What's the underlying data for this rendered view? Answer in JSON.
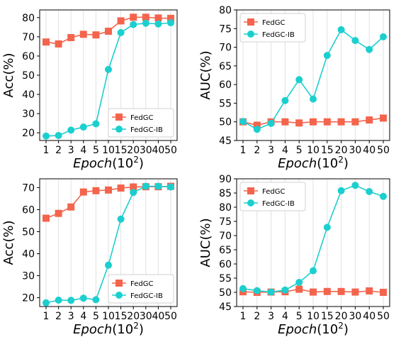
{
  "figure": {
    "colors": {
      "FedGC": "#f4644c",
      "FedGC-IB": "#1ccfcf",
      "grid": "#e0e0e0",
      "axis": "#000000"
    },
    "x_unit_suffix": "(10",
    "x_exp": "2",
    "x_close": ")",
    "x_label_word": "Epoch"
  },
  "chart_data": [
    {
      "type": "line",
      "title": "",
      "xlabel": "Epoch(10^2)",
      "ylabel": "Acc(%)",
      "categories": [
        "1",
        "2",
        "3",
        "4",
        "5",
        "10",
        "15",
        "20",
        "30",
        "40",
        "50"
      ],
      "ylim": [
        16,
        84
      ],
      "yticks": [
        20,
        30,
        40,
        50,
        60,
        70,
        80
      ],
      "grid": "vertical",
      "legend": "bottom-right",
      "series": [
        {
          "name": "FedGC",
          "marker": "square",
          "values": [
            67.3,
            66.3,
            69.6,
            71.3,
            71.0,
            72.9,
            78.3,
            80.2,
            80.2,
            79.8,
            79.6
          ]
        },
        {
          "name": "FedGC-IB",
          "marker": "circle",
          "values": [
            18.3,
            18.6,
            21.4,
            23.0,
            24.7,
            53.0,
            72.2,
            76.4,
            77.1,
            76.7,
            77.3
          ]
        }
      ]
    },
    {
      "type": "line",
      "title": "",
      "xlabel": "Epoch(10^2)",
      "ylabel": "AUC(%)",
      "categories": [
        "1",
        "2",
        "3",
        "4",
        "5",
        "10",
        "15",
        "20",
        "30",
        "40",
        "50"
      ],
      "ylim": [
        45,
        80
      ],
      "yticks": [
        45,
        50,
        55,
        60,
        65,
        70,
        75,
        80
      ],
      "grid": "vertical",
      "legend": "top-left",
      "series": [
        {
          "name": "FedGC",
          "marker": "square",
          "values": [
            50.0,
            49.1,
            50.0,
            50.0,
            49.7,
            50.0,
            50.0,
            50.0,
            50.0,
            50.5,
            51.0
          ]
        },
        {
          "name": "FedGC-IB",
          "marker": "circle",
          "values": [
            50.1,
            48.0,
            49.6,
            55.7,
            61.3,
            56.1,
            67.8,
            74.7,
            71.8,
            69.4,
            72.8
          ]
        }
      ]
    },
    {
      "type": "line",
      "title": "",
      "xlabel": "Epoch(10^2)",
      "ylabel": "Acc(%)",
      "categories": [
        "1",
        "2",
        "3",
        "4",
        "5",
        "10",
        "15",
        "20",
        "30",
        "40",
        "50"
      ],
      "ylim": [
        16,
        74
      ],
      "yticks": [
        20,
        30,
        40,
        50,
        60,
        70
      ],
      "grid": "vertical",
      "legend": "bottom-right",
      "series": [
        {
          "name": "FedGC",
          "marker": "square",
          "values": [
            56.1,
            58.3,
            61.2,
            68.0,
            68.6,
            68.9,
            69.8,
            70.3,
            70.4,
            70.4,
            70.6
          ]
        },
        {
          "name": "FedGC-IB",
          "marker": "circle",
          "values": [
            17.7,
            18.9,
            18.8,
            19.8,
            19.1,
            34.8,
            55.7,
            67.8,
            70.6,
            70.6,
            70.3
          ]
        }
      ]
    },
    {
      "type": "line",
      "title": "",
      "xlabel": "Epoch(10^2)",
      "ylabel": "AUC(%)",
      "categories": [
        "1",
        "2",
        "3",
        "4",
        "5",
        "10",
        "15",
        "20",
        "30",
        "40",
        "50"
      ],
      "ylim": [
        45,
        90
      ],
      "yticks": [
        45,
        50,
        55,
        60,
        65,
        70,
        75,
        80,
        85,
        90
      ],
      "grid": "vertical",
      "legend": "top-left",
      "series": [
        {
          "name": "FedGC",
          "marker": "square",
          "values": [
            50.2,
            50.0,
            50.1,
            50.2,
            51.1,
            50.1,
            50.3,
            50.3,
            50.1,
            50.5,
            50.0
          ]
        },
        {
          "name": "FedGC-IB",
          "marker": "circle",
          "values": [
            51.3,
            50.6,
            50.1,
            50.8,
            53.5,
            57.6,
            72.9,
            85.8,
            87.7,
            85.5,
            83.8
          ]
        }
      ]
    }
  ]
}
